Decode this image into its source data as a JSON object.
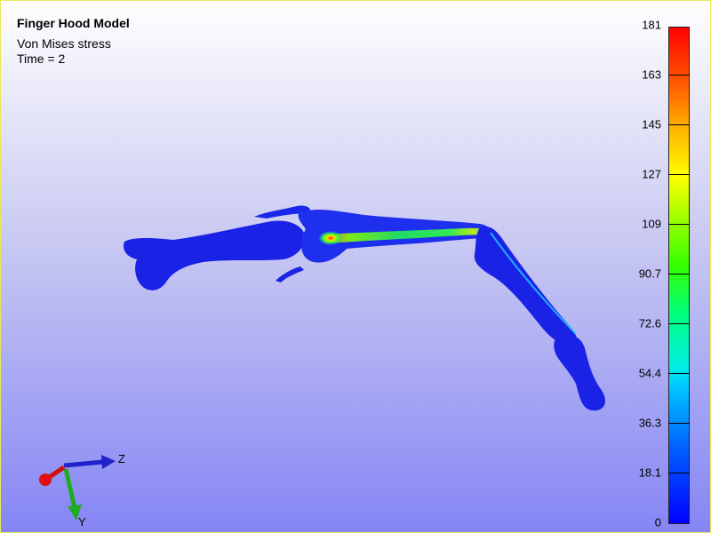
{
  "header": {
    "title": "Finger Hood Model",
    "result": "Von Mises stress",
    "time": "Time = 2"
  },
  "legend": {
    "ticks": [
      "181",
      "163",
      "145",
      "127",
      "109",
      "90.7",
      "72.6",
      "54.4",
      "36.3",
      "18.1",
      "0"
    ],
    "colors": {
      "high": "#ff0000",
      "mid": "#00ff80",
      "low": "#0000ff"
    }
  },
  "axes": {
    "labels": {
      "z": "Z",
      "y": "Y"
    },
    "colors": {
      "x": "#cc1111",
      "y": "#22aa22",
      "z": "#2222cc"
    }
  },
  "model": {
    "base_color": "#1a22e6"
  }
}
